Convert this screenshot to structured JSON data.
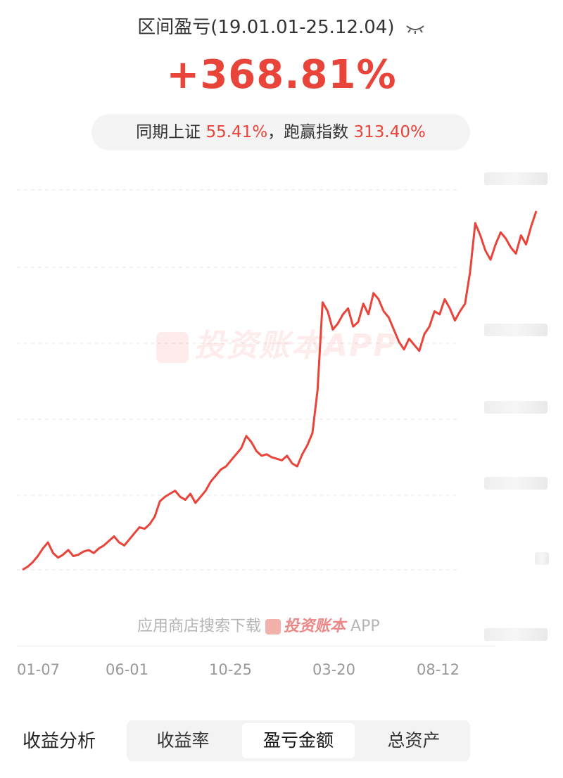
{
  "header": {
    "title": "区间盈亏(19.01.01-25.12.04)",
    "eye_icon": "eye-closed-icon",
    "value": "+368.81%"
  },
  "compare": {
    "prefix": "同期上证",
    "index_return": "55.41%",
    "middle": "，跑赢指数",
    "excess_return": "313.40%"
  },
  "watermark": "投资账本APP",
  "store_note": {
    "text": "应用商店搜索下载",
    "brand": "投资账本",
    "suffix": "APP"
  },
  "colors": {
    "line": "#e8443a",
    "accent": "#e8443a"
  },
  "chart_data": {
    "type": "line",
    "title": "",
    "xlabel": "",
    "ylabel": "",
    "tick_labels": [
      "01-07",
      "06-01",
      "10-25",
      "03-20",
      "08-12"
    ],
    "grid": true,
    "series": [
      {
        "values": [
          0,
          2,
          5,
          9,
          14,
          18,
          11,
          8,
          10,
          13,
          9,
          10,
          12,
          13,
          11,
          14,
          16,
          19,
          22,
          18,
          16,
          20,
          24,
          28,
          27,
          30,
          35,
          45,
          48,
          50,
          52,
          48,
          46,
          50,
          44,
          48,
          52,
          58,
          62,
          66,
          68,
          72,
          76,
          80,
          88,
          84,
          78,
          75,
          76,
          74,
          73,
          72,
          75,
          70,
          68,
          76,
          82,
          90,
          118,
          176,
          170,
          158,
          162,
          168,
          172,
          160,
          163,
          175,
          168,
          182,
          178,
          170,
          166,
          158,
          150,
          145,
          152,
          148,
          144,
          155,
          160,
          170,
          168,
          178,
          172,
          164,
          170,
          175,
          196,
          228,
          220,
          210,
          204,
          214,
          222,
          218,
          212,
          208,
          220,
          214,
          226,
          236
        ]
      }
    ]
  },
  "footer": {
    "section_title": "收益分析",
    "tabs": [
      {
        "label": "收益率",
        "active": false
      },
      {
        "label": "盈亏金额",
        "active": true
      },
      {
        "label": "总资产",
        "active": false
      }
    ]
  }
}
